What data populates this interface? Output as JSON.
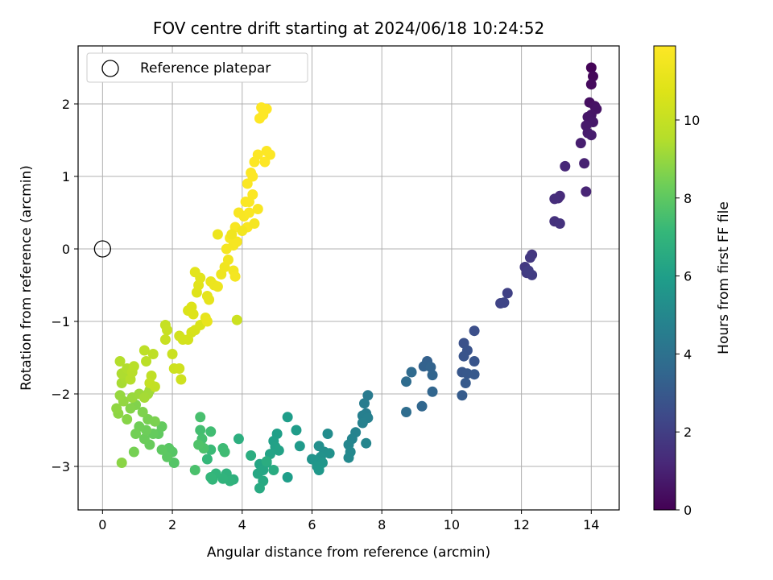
{
  "chart_data": {
    "type": "scatter",
    "title": "FOV centre drift starting at 2024/06/18 10:24:52",
    "xlabel": "Angular distance from reference (arcmin)",
    "ylabel": "Rotation from reference (arcmin)",
    "xlim": [
      -0.7,
      14.8
    ],
    "ylim": [
      -3.6,
      2.8
    ],
    "xticks": [
      0,
      2,
      4,
      6,
      8,
      10,
      12,
      14
    ],
    "yticks": [
      -3,
      -2,
      -1,
      0,
      1,
      2
    ],
    "xtick_labels": [
      "0",
      "2",
      "4",
      "6",
      "8",
      "10",
      "12",
      "14"
    ],
    "ytick_labels": [
      "−3",
      "−2",
      "−1",
      "0",
      "1",
      "2"
    ],
    "grid": true,
    "legend": {
      "placement": "top-left",
      "label": "Reference platepar"
    },
    "reference_point": {
      "x": 0,
      "y": 0
    },
    "colorbar": {
      "label": "Hours from first FF file",
      "range": [
        0,
        11.9
      ],
      "ticks": [
        0,
        2,
        4,
        6,
        8,
        10
      ],
      "tick_labels": [
        "0",
        "2",
        "4",
        "6",
        "8",
        "10"
      ],
      "colormap": "viridis"
    },
    "points": [
      [
        14.0,
        2.5,
        0.1
      ],
      [
        14.05,
        2.38,
        0.2
      ],
      [
        14.0,
        2.27,
        0.3
      ],
      [
        13.95,
        2.02,
        0.4
      ],
      [
        14.1,
        1.97,
        0.5
      ],
      [
        14.15,
        1.93,
        0.55
      ],
      [
        14.0,
        1.85,
        0.6
      ],
      [
        13.9,
        1.82,
        0.65
      ],
      [
        14.05,
        1.75,
        0.7
      ],
      [
        13.85,
        1.7,
        0.75
      ],
      [
        13.9,
        1.6,
        0.8
      ],
      [
        14.0,
        1.57,
        0.85
      ],
      [
        13.7,
        1.46,
        0.9
      ],
      [
        13.8,
        1.18,
        1.0
      ],
      [
        13.85,
        0.79,
        1.1
      ],
      [
        13.25,
        1.14,
        1.2
      ],
      [
        13.1,
        0.73,
        1.3
      ],
      [
        13.05,
        0.7,
        1.35
      ],
      [
        12.95,
        0.69,
        1.4
      ],
      [
        12.95,
        0.38,
        1.5
      ],
      [
        13.1,
        0.35,
        1.55
      ],
      [
        12.3,
        -0.08,
        1.7
      ],
      [
        12.25,
        -0.12,
        1.75
      ],
      [
        12.1,
        -0.25,
        1.8
      ],
      [
        12.15,
        -0.33,
        1.85
      ],
      [
        12.3,
        -0.36,
        1.9
      ],
      [
        12.2,
        -0.3,
        1.95
      ],
      [
        11.6,
        -0.61,
        2.1
      ],
      [
        11.4,
        -0.75,
        2.2
      ],
      [
        11.5,
        -0.74,
        2.25
      ],
      [
        10.65,
        -1.13,
        2.6
      ],
      [
        10.35,
        -1.3,
        2.7
      ],
      [
        10.45,
        -1.4,
        2.75
      ],
      [
        10.35,
        -1.48,
        2.8
      ],
      [
        10.65,
        -1.55,
        2.85
      ],
      [
        10.3,
        -1.7,
        2.9
      ],
      [
        10.45,
        -1.72,
        2.95
      ],
      [
        10.65,
        -1.73,
        3.0
      ],
      [
        10.4,
        -1.85,
        3.05
      ],
      [
        10.3,
        -2.02,
        3.1
      ],
      [
        9.3,
        -1.55,
        3.3
      ],
      [
        9.2,
        -1.62,
        3.35
      ],
      [
        9.4,
        -1.63,
        3.4
      ],
      [
        9.45,
        -1.74,
        3.45
      ],
      [
        9.45,
        -1.97,
        3.5
      ],
      [
        9.15,
        -2.17,
        3.55
      ],
      [
        8.85,
        -1.7,
        3.7
      ],
      [
        8.7,
        -1.83,
        3.75
      ],
      [
        8.7,
        -2.25,
        3.8
      ],
      [
        7.6,
        -2.02,
        4.4
      ],
      [
        7.5,
        -2.13,
        4.5
      ],
      [
        7.55,
        -2.27,
        4.55
      ],
      [
        7.45,
        -2.3,
        4.6
      ],
      [
        7.6,
        -2.33,
        4.65
      ],
      [
        7.45,
        -2.4,
        4.7
      ],
      [
        7.25,
        -2.53,
        4.8
      ],
      [
        7.15,
        -2.62,
        4.85
      ],
      [
        7.55,
        -2.68,
        4.9
      ],
      [
        7.05,
        -2.7,
        4.95
      ],
      [
        7.1,
        -2.8,
        5.0
      ],
      [
        7.05,
        -2.88,
        5.05
      ],
      [
        6.45,
        -2.55,
        5.2
      ],
      [
        6.2,
        -2.72,
        5.3
      ],
      [
        6.35,
        -2.8,
        5.35
      ],
      [
        6.5,
        -2.82,
        5.4
      ],
      [
        6.25,
        -2.87,
        5.45
      ],
      [
        6.0,
        -2.9,
        5.5
      ],
      [
        6.1,
        -2.92,
        5.55
      ],
      [
        6.3,
        -2.95,
        5.6
      ],
      [
        6.15,
        -3.0,
        5.65
      ],
      [
        6.2,
        -3.05,
        5.7
      ],
      [
        5.65,
        -2.72,
        5.8
      ],
      [
        5.55,
        -2.5,
        5.85
      ],
      [
        5.3,
        -2.32,
        5.9
      ],
      [
        5.3,
        -3.15,
        5.95
      ],
      [
        5.0,
        -2.55,
        6.0
      ],
      [
        4.9,
        -2.65,
        6.05
      ],
      [
        4.95,
        -2.73,
        6.1
      ],
      [
        5.05,
        -2.78,
        6.15
      ],
      [
        4.8,
        -2.83,
        6.2
      ],
      [
        4.7,
        -2.95,
        6.25
      ],
      [
        4.5,
        -2.97,
        6.3
      ],
      [
        4.6,
        -3.05,
        6.35
      ],
      [
        4.45,
        -3.1,
        6.4
      ],
      [
        4.6,
        -3.2,
        6.45
      ],
      [
        4.5,
        -3.3,
        6.5
      ],
      [
        4.9,
        -3.05,
        6.55
      ],
      [
        4.7,
        -2.93,
        6.6
      ],
      [
        4.25,
        -2.85,
        6.65
      ],
      [
        3.9,
        -2.62,
        6.7
      ],
      [
        3.75,
        -3.18,
        6.8
      ],
      [
        3.55,
        -3.1,
        6.85
      ],
      [
        3.65,
        -3.2,
        6.9
      ],
      [
        3.45,
        -3.17,
        6.95
      ],
      [
        3.25,
        -3.1,
        7.0
      ],
      [
        3.15,
        -3.18,
        7.05
      ],
      [
        3.1,
        -3.15,
        7.1
      ],
      [
        3.0,
        -2.9,
        7.15
      ],
      [
        2.9,
        -2.75,
        7.2
      ],
      [
        3.1,
        -2.77,
        7.25
      ],
      [
        3.45,
        -2.75,
        7.3
      ],
      [
        3.5,
        -2.8,
        7.35
      ],
      [
        3.1,
        -2.52,
        7.4
      ],
      [
        2.8,
        -2.5,
        7.45
      ],
      [
        2.85,
        -2.62,
        7.5
      ],
      [
        2.8,
        -2.32,
        7.55
      ],
      [
        2.65,
        -3.05,
        7.6
      ],
      [
        2.9,
        -2.75,
        7.65
      ],
      [
        2.75,
        -2.7,
        7.7
      ],
      [
        2.05,
        -2.95,
        7.8
      ],
      [
        2.0,
        -2.8,
        7.85
      ],
      [
        1.9,
        -2.75,
        7.9
      ],
      [
        1.85,
        -2.87,
        7.95
      ],
      [
        1.7,
        -2.77,
        8.0
      ],
      [
        1.6,
        -2.55,
        8.05
      ],
      [
        1.7,
        -2.45,
        8.1
      ],
      [
        1.45,
        -2.55,
        8.15
      ],
      [
        1.35,
        -2.7,
        8.2
      ],
      [
        1.2,
        -2.62,
        8.25
      ],
      [
        1.25,
        -2.5,
        8.3
      ],
      [
        1.05,
        -2.45,
        8.35
      ],
      [
        0.95,
        -2.55,
        8.4
      ],
      [
        0.9,
        -2.8,
        8.45
      ],
      [
        1.3,
        -2.35,
        8.5
      ],
      [
        1.5,
        -2.38,
        8.55
      ],
      [
        1.15,
        -2.25,
        8.6
      ],
      [
        0.95,
        -2.15,
        8.65
      ],
      [
        0.8,
        -2.2,
        8.7
      ],
      [
        0.7,
        -2.35,
        8.75
      ],
      [
        0.55,
        -2.95,
        8.8
      ],
      [
        0.45,
        -2.27,
        8.85
      ],
      [
        0.4,
        -2.2,
        8.9
      ],
      [
        0.6,
        -2.1,
        8.95
      ],
      [
        0.5,
        -2.02,
        9.0
      ],
      [
        0.85,
        -2.05,
        9.05
      ],
      [
        1.05,
        -2.0,
        9.1
      ],
      [
        1.3,
        -2.0,
        9.15
      ],
      [
        1.35,
        -1.95,
        9.2
      ],
      [
        1.2,
        -2.05,
        9.25
      ],
      [
        0.55,
        -1.85,
        9.3
      ],
      [
        0.65,
        -1.78,
        9.35
      ],
      [
        0.55,
        -1.72,
        9.4
      ],
      [
        0.7,
        -1.65,
        9.45
      ],
      [
        0.5,
        -1.55,
        9.5
      ],
      [
        0.8,
        -1.8,
        9.55
      ],
      [
        0.85,
        -1.7,
        9.6
      ],
      [
        0.9,
        -1.62,
        9.65
      ],
      [
        1.25,
        -1.55,
        9.7
      ],
      [
        1.2,
        -1.4,
        9.75
      ],
      [
        1.45,
        -1.45,
        9.8
      ],
      [
        1.4,
        -1.75,
        9.85
      ],
      [
        1.5,
        -1.9,
        9.9
      ],
      [
        1.35,
        -1.85,
        9.95
      ],
      [
        1.8,
        -1.05,
        10.0
      ],
      [
        1.85,
        -1.12,
        10.05
      ],
      [
        1.8,
        -1.25,
        10.1
      ],
      [
        2.0,
        -1.45,
        10.15
      ],
      [
        2.05,
        -1.65,
        10.2
      ],
      [
        2.25,
        -1.8,
        10.25
      ],
      [
        2.2,
        -1.65,
        10.3
      ],
      [
        2.2,
        -1.2,
        10.35
      ],
      [
        2.3,
        -1.25,
        10.4
      ],
      [
        2.45,
        -1.25,
        10.45
      ],
      [
        2.55,
        -1.15,
        10.5
      ],
      [
        2.65,
        -1.12,
        10.55
      ],
      [
        2.8,
        -1.05,
        10.6
      ],
      [
        2.45,
        -0.85,
        10.65
      ],
      [
        2.55,
        -0.8,
        10.7
      ],
      [
        2.6,
        -0.9,
        10.75
      ],
      [
        2.7,
        -0.6,
        10.8
      ],
      [
        2.75,
        -0.5,
        10.85
      ],
      [
        2.8,
        -0.4,
        10.9
      ],
      [
        2.65,
        -0.32,
        10.95
      ],
      [
        3.0,
        -0.65,
        11.0
      ],
      [
        3.05,
        -0.7,
        11.05
      ],
      [
        2.95,
        -0.95,
        11.1
      ],
      [
        3.0,
        -1.0,
        11.15
      ],
      [
        3.1,
        -0.45,
        11.2
      ],
      [
        3.2,
        -0.5,
        11.25
      ],
      [
        3.3,
        -0.52,
        11.3
      ],
      [
        3.4,
        -0.35,
        11.35
      ],
      [
        3.5,
        -0.25,
        11.4
      ],
      [
        3.6,
        -0.15,
        11.45
      ],
      [
        3.75,
        -0.3,
        11.5
      ],
      [
        3.8,
        -0.38,
        11.55
      ],
      [
        3.55,
        0.0,
        11.6
      ],
      [
        3.75,
        0.05,
        11.6
      ],
      [
        3.65,
        0.15,
        11.65
      ],
      [
        3.85,
        0.1,
        11.65
      ],
      [
        3.8,
        0.3,
        11.7
      ],
      [
        3.9,
        0.5,
        11.7
      ],
      [
        4.05,
        0.45,
        11.72
      ],
      [
        4.15,
        0.3,
        11.74
      ],
      [
        4.2,
        0.5,
        11.76
      ],
      [
        4.1,
        0.65,
        11.78
      ],
      [
        4.15,
        0.9,
        11.8
      ],
      [
        4.3,
        0.75,
        11.82
      ],
      [
        4.25,
        1.05,
        11.84
      ],
      [
        4.35,
        1.2,
        11.85
      ],
      [
        4.45,
        1.3,
        11.86
      ],
      [
        4.7,
        1.35,
        11.87
      ],
      [
        4.8,
        1.3,
        11.88
      ],
      [
        4.65,
        1.2,
        11.89
      ],
      [
        4.5,
        1.8,
        11.9
      ],
      [
        4.55,
        1.95,
        11.9
      ],
      [
        4.7,
        1.93,
        11.9
      ],
      [
        4.6,
        1.85,
        11.9
      ],
      [
        3.85,
        -0.98,
        10.2
      ],
      [
        4.0,
        0.25,
        11.5
      ],
      [
        4.35,
        0.35,
        11.6
      ],
      [
        3.7,
        0.2,
        11.4
      ],
      [
        3.3,
        0.2,
        11.3
      ],
      [
        4.45,
        0.55,
        11.7
      ],
      [
        4.2,
        0.65,
        11.8
      ],
      [
        4.3,
        1.0,
        11.85
      ]
    ]
  }
}
